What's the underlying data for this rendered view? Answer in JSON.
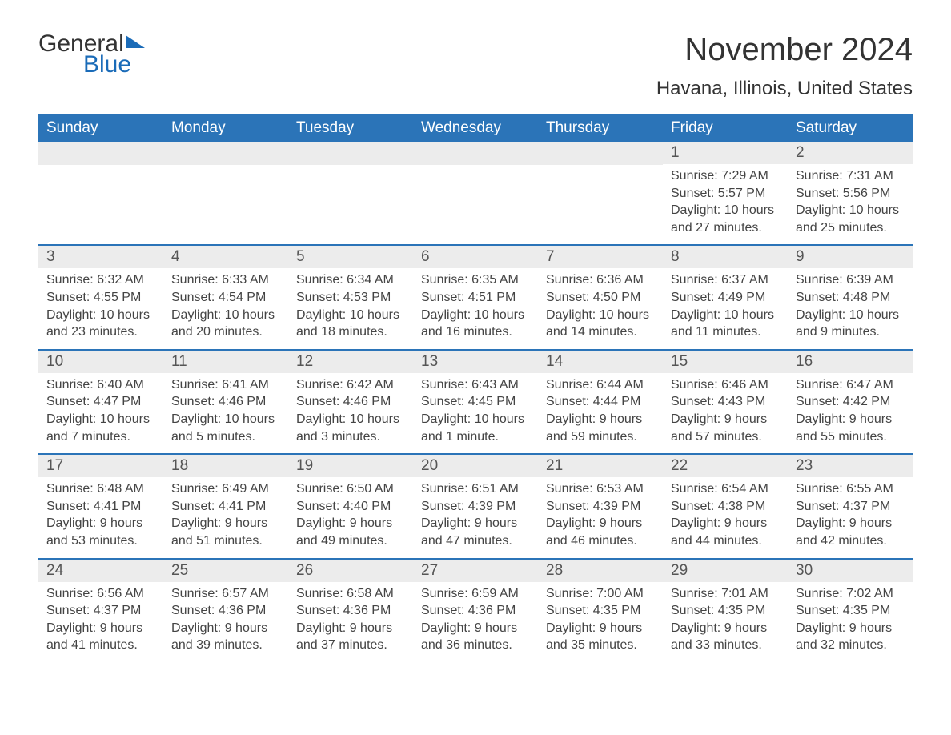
{
  "brand": {
    "general": "General",
    "blue": "Blue",
    "flag_color": "#1a6bb8"
  },
  "title": "November 2024",
  "location": "Havana, Illinois, United States",
  "colors": {
    "header_bg": "#2b74b8",
    "header_text": "#ffffff",
    "daynum_bg": "#ececec",
    "week_border": "#2b74b8",
    "body_text": "#444444",
    "title_text": "#333333"
  },
  "typography": {
    "title_fontsize": 40,
    "location_fontsize": 24,
    "header_fontsize": 19,
    "daynum_fontsize": 19,
    "body_fontsize": 16
  },
  "weekdays": [
    "Sunday",
    "Monday",
    "Tuesday",
    "Wednesday",
    "Thursday",
    "Friday",
    "Saturday"
  ],
  "weeks": [
    [
      {
        "day": "",
        "sunrise": "",
        "sunset": "",
        "daylight": ""
      },
      {
        "day": "",
        "sunrise": "",
        "sunset": "",
        "daylight": ""
      },
      {
        "day": "",
        "sunrise": "",
        "sunset": "",
        "daylight": ""
      },
      {
        "day": "",
        "sunrise": "",
        "sunset": "",
        "daylight": ""
      },
      {
        "day": "",
        "sunrise": "",
        "sunset": "",
        "daylight": ""
      },
      {
        "day": "1",
        "sunrise": "Sunrise: 7:29 AM",
        "sunset": "Sunset: 5:57 PM",
        "daylight": "Daylight: 10 hours and 27 minutes."
      },
      {
        "day": "2",
        "sunrise": "Sunrise: 7:31 AM",
        "sunset": "Sunset: 5:56 PM",
        "daylight": "Daylight: 10 hours and 25 minutes."
      }
    ],
    [
      {
        "day": "3",
        "sunrise": "Sunrise: 6:32 AM",
        "sunset": "Sunset: 4:55 PM",
        "daylight": "Daylight: 10 hours and 23 minutes."
      },
      {
        "day": "4",
        "sunrise": "Sunrise: 6:33 AM",
        "sunset": "Sunset: 4:54 PM",
        "daylight": "Daylight: 10 hours and 20 minutes."
      },
      {
        "day": "5",
        "sunrise": "Sunrise: 6:34 AM",
        "sunset": "Sunset: 4:53 PM",
        "daylight": "Daylight: 10 hours and 18 minutes."
      },
      {
        "day": "6",
        "sunrise": "Sunrise: 6:35 AM",
        "sunset": "Sunset: 4:51 PM",
        "daylight": "Daylight: 10 hours and 16 minutes."
      },
      {
        "day": "7",
        "sunrise": "Sunrise: 6:36 AM",
        "sunset": "Sunset: 4:50 PM",
        "daylight": "Daylight: 10 hours and 14 minutes."
      },
      {
        "day": "8",
        "sunrise": "Sunrise: 6:37 AM",
        "sunset": "Sunset: 4:49 PM",
        "daylight": "Daylight: 10 hours and 11 minutes."
      },
      {
        "day": "9",
        "sunrise": "Sunrise: 6:39 AM",
        "sunset": "Sunset: 4:48 PM",
        "daylight": "Daylight: 10 hours and 9 minutes."
      }
    ],
    [
      {
        "day": "10",
        "sunrise": "Sunrise: 6:40 AM",
        "sunset": "Sunset: 4:47 PM",
        "daylight": "Daylight: 10 hours and 7 minutes."
      },
      {
        "day": "11",
        "sunrise": "Sunrise: 6:41 AM",
        "sunset": "Sunset: 4:46 PM",
        "daylight": "Daylight: 10 hours and 5 minutes."
      },
      {
        "day": "12",
        "sunrise": "Sunrise: 6:42 AM",
        "sunset": "Sunset: 4:46 PM",
        "daylight": "Daylight: 10 hours and 3 minutes."
      },
      {
        "day": "13",
        "sunrise": "Sunrise: 6:43 AM",
        "sunset": "Sunset: 4:45 PM",
        "daylight": "Daylight: 10 hours and 1 minute."
      },
      {
        "day": "14",
        "sunrise": "Sunrise: 6:44 AM",
        "sunset": "Sunset: 4:44 PM",
        "daylight": "Daylight: 9 hours and 59 minutes."
      },
      {
        "day": "15",
        "sunrise": "Sunrise: 6:46 AM",
        "sunset": "Sunset: 4:43 PM",
        "daylight": "Daylight: 9 hours and 57 minutes."
      },
      {
        "day": "16",
        "sunrise": "Sunrise: 6:47 AM",
        "sunset": "Sunset: 4:42 PM",
        "daylight": "Daylight: 9 hours and 55 minutes."
      }
    ],
    [
      {
        "day": "17",
        "sunrise": "Sunrise: 6:48 AM",
        "sunset": "Sunset: 4:41 PM",
        "daylight": "Daylight: 9 hours and 53 minutes."
      },
      {
        "day": "18",
        "sunrise": "Sunrise: 6:49 AM",
        "sunset": "Sunset: 4:41 PM",
        "daylight": "Daylight: 9 hours and 51 minutes."
      },
      {
        "day": "19",
        "sunrise": "Sunrise: 6:50 AM",
        "sunset": "Sunset: 4:40 PM",
        "daylight": "Daylight: 9 hours and 49 minutes."
      },
      {
        "day": "20",
        "sunrise": "Sunrise: 6:51 AM",
        "sunset": "Sunset: 4:39 PM",
        "daylight": "Daylight: 9 hours and 47 minutes."
      },
      {
        "day": "21",
        "sunrise": "Sunrise: 6:53 AM",
        "sunset": "Sunset: 4:39 PM",
        "daylight": "Daylight: 9 hours and 46 minutes."
      },
      {
        "day": "22",
        "sunrise": "Sunrise: 6:54 AM",
        "sunset": "Sunset: 4:38 PM",
        "daylight": "Daylight: 9 hours and 44 minutes."
      },
      {
        "day": "23",
        "sunrise": "Sunrise: 6:55 AM",
        "sunset": "Sunset: 4:37 PM",
        "daylight": "Daylight: 9 hours and 42 minutes."
      }
    ],
    [
      {
        "day": "24",
        "sunrise": "Sunrise: 6:56 AM",
        "sunset": "Sunset: 4:37 PM",
        "daylight": "Daylight: 9 hours and 41 minutes."
      },
      {
        "day": "25",
        "sunrise": "Sunrise: 6:57 AM",
        "sunset": "Sunset: 4:36 PM",
        "daylight": "Daylight: 9 hours and 39 minutes."
      },
      {
        "day": "26",
        "sunrise": "Sunrise: 6:58 AM",
        "sunset": "Sunset: 4:36 PM",
        "daylight": "Daylight: 9 hours and 37 minutes."
      },
      {
        "day": "27",
        "sunrise": "Sunrise: 6:59 AM",
        "sunset": "Sunset: 4:36 PM",
        "daylight": "Daylight: 9 hours and 36 minutes."
      },
      {
        "day": "28",
        "sunrise": "Sunrise: 7:00 AM",
        "sunset": "Sunset: 4:35 PM",
        "daylight": "Daylight: 9 hours and 35 minutes."
      },
      {
        "day": "29",
        "sunrise": "Sunrise: 7:01 AM",
        "sunset": "Sunset: 4:35 PM",
        "daylight": "Daylight: 9 hours and 33 minutes."
      },
      {
        "day": "30",
        "sunrise": "Sunrise: 7:02 AM",
        "sunset": "Sunset: 4:35 PM",
        "daylight": "Daylight: 9 hours and 32 minutes."
      }
    ]
  ]
}
